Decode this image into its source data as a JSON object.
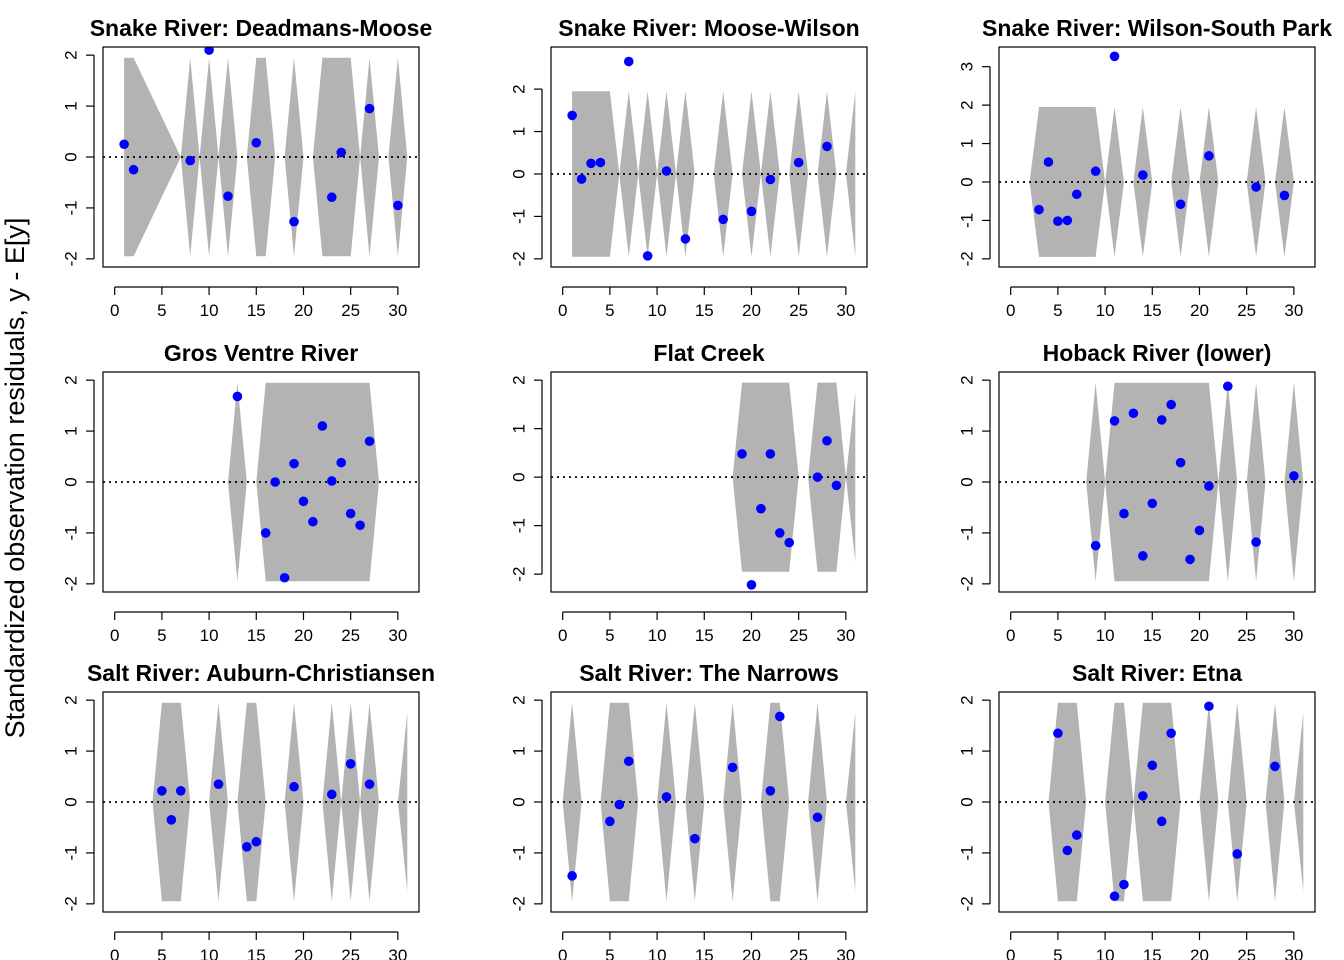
{
  "ylabel": "Standardized observation residuals, y - E[y]",
  "colors": {
    "point": "#0000ff",
    "band": "#b3b3b3",
    "axis": "#000000",
    "zero_line": "#000000"
  },
  "chart_data": [
    {
      "type": "scatter",
      "title": "Snake River: Deadmans-Moose",
      "xlim": [
        0,
        31
      ],
      "ylim": [
        -2,
        2
      ],
      "xticks": [
        0,
        5,
        10,
        15,
        20,
        25,
        30
      ],
      "yticks": [
        -2,
        -1,
        0,
        1,
        2
      ],
      "x": [
        1,
        2,
        8,
        10,
        12,
        15,
        19,
        23,
        24,
        27,
        30
      ],
      "y": [
        0.25,
        -0.25,
        -0.07,
        2.1,
        -0.77,
        0.28,
        -1.27,
        -0.79,
        0.09,
        0.95,
        -0.95
      ],
      "band_half_width": {
        "1": 1.95,
        "2": 1.95,
        "7": 0,
        "8": 1.95,
        "9": 0,
        "10": 1.95,
        "11": 0,
        "12": 1.95,
        "13": 0,
        "14": 0,
        "15": 1.95,
        "16": 1.95,
        "17": 0,
        "18": 0,
        "19": 1.95,
        "20": 0,
        "21": 0,
        "22": 1.95,
        "23": 1.95,
        "24": 1.95,
        "25": 1.95,
        "26": 0,
        "27": 1.95,
        "28": 0,
        "29": 0,
        "30": 1.95,
        "31": 0
      }
    },
    {
      "type": "scatter",
      "title": "Snake River: Moose-Wilson",
      "xlim": [
        0,
        31
      ],
      "ylim": [
        -2,
        2.8
      ],
      "xticks": [
        0,
        5,
        10,
        15,
        20,
        25,
        30
      ],
      "yticks": [
        -2,
        -1,
        0,
        1,
        2
      ],
      "x": [
        1,
        2,
        3,
        4,
        7,
        9,
        11,
        13,
        17,
        20,
        22,
        25,
        28
      ],
      "y": [
        1.38,
        -0.12,
        0.25,
        0.27,
        2.65,
        -1.93,
        0.07,
        -1.53,
        -1.07,
        -0.88,
        -0.13,
        0.27,
        0.65
      ],
      "band_half_width": {
        "1": 1.95,
        "2": 1.95,
        "3": 1.95,
        "4": 1.95,
        "5": 1.95,
        "6": 0,
        "7": 1.95,
        "8": 0,
        "9": 1.95,
        "10": 0,
        "11": 1.95,
        "12": 0,
        "13": 1.95,
        "14": 0,
        "15": 0,
        "16": 0,
        "17": 1.95,
        "18": 0,
        "19": 0,
        "20": 1.95,
        "21": 0,
        "22": 1.95,
        "23": 0,
        "24": 0,
        "25": 1.95,
        "26": 0,
        "27": 0,
        "28": 1.95,
        "29": 0,
        "30": 0,
        "31": 1.95
      }
    },
    {
      "type": "scatter",
      "title": "Snake River: Wilson-South Park",
      "xlim": [
        0,
        31
      ],
      "ylim": [
        -2,
        3.3
      ],
      "xticks": [
        0,
        5,
        10,
        15,
        20,
        25,
        30
      ],
      "yticks": [
        -2,
        -1,
        0,
        1,
        2,
        3
      ],
      "x": [
        3,
        4,
        5,
        6,
        7,
        9,
        11,
        14,
        18,
        21,
        26,
        29
      ],
      "y": [
        -0.72,
        0.52,
        -1.02,
        -1.0,
        -0.32,
        0.28,
        3.27,
        0.18,
        -0.58,
        0.68,
        -0.13,
        -0.35
      ],
      "band_half_width": {
        "2": 0,
        "3": 1.95,
        "4": 1.95,
        "5": 1.95,
        "6": 1.95,
        "7": 1.95,
        "8": 1.95,
        "9": 1.95,
        "10": 0,
        "11": 1.95,
        "12": 0,
        "13": 0,
        "14": 1.95,
        "15": 0,
        "16": 0,
        "17": 0,
        "18": 1.95,
        "19": 0,
        "20": 0,
        "21": 1.95,
        "22": 0,
        "23": 0,
        "24": 0,
        "25": 0,
        "26": 1.95,
        "27": 0,
        "28": 0,
        "29": 1.95,
        "30": 0
      }
    },
    {
      "type": "scatter",
      "title": "Gros Ventre River",
      "xlim": [
        0,
        31
      ],
      "ylim": [
        -2,
        2
      ],
      "xticks": [
        0,
        5,
        10,
        15,
        20,
        25,
        30
      ],
      "yticks": [
        -2,
        -1,
        0,
        1,
        2
      ],
      "x": [
        13,
        16,
        17,
        18,
        19,
        20,
        21,
        22,
        23,
        24,
        25,
        26,
        27
      ],
      "y": [
        1.68,
        -1.0,
        0.0,
        -1.88,
        0.36,
        -0.38,
        -0.78,
        1.1,
        0.02,
        0.38,
        -0.62,
        -0.85,
        0.8
      ],
      "band_half_width": {
        "12": 0,
        "13": 1.95,
        "14": 0,
        "15": 0,
        "16": 1.95,
        "17": 1.95,
        "18": 1.95,
        "19": 1.95,
        "20": 1.95,
        "21": 1.95,
        "22": 1.95,
        "23": 1.95,
        "24": 1.95,
        "25": 1.95,
        "26": 1.95,
        "27": 1.95,
        "28": 0
      }
    },
    {
      "type": "scatter",
      "title": "Flat Creek",
      "xlim": [
        0,
        31
      ],
      "ylim": [
        -2.2,
        2
      ],
      "xticks": [
        0,
        5,
        10,
        15,
        20,
        25,
        30
      ],
      "yticks": [
        -2,
        -1,
        0,
        1,
        2
      ],
      "x": [
        19,
        20,
        21,
        22,
        23,
        24,
        27,
        28,
        29
      ],
      "y": [
        0.48,
        -2.22,
        -0.65,
        0.48,
        -1.15,
        -1.35,
        0.0,
        0.75,
        -0.17
      ],
      "band_half_width": {
        "18": 0,
        "19": 1.95,
        "20": 1.95,
        "21": 1.95,
        "22": 1.95,
        "23": 1.95,
        "24": 1.95,
        "25": 0,
        "26": 0,
        "27": 1.95,
        "28": 1.95,
        "29": 1.95,
        "30": 0,
        "31": 1.75
      }
    },
    {
      "type": "scatter",
      "title": "Hoback River (lower)",
      "xlim": [
        0,
        31
      ],
      "ylim": [
        -2,
        2
      ],
      "xticks": [
        0,
        5,
        10,
        15,
        20,
        25,
        30
      ],
      "yticks": [
        -2,
        -1,
        0,
        1,
        2
      ],
      "x": [
        9,
        11,
        12,
        13,
        14,
        15,
        16,
        17,
        18,
        19,
        20,
        21,
        23,
        26,
        30
      ],
      "y": [
        -1.25,
        1.2,
        -0.62,
        1.35,
        -1.45,
        -0.42,
        1.22,
        1.52,
        0.38,
        -1.52,
        -0.95,
        -0.08,
        1.88,
        -1.18,
        0.12
      ],
      "band_half_width": {
        "8": 0,
        "9": 1.95,
        "10": 0,
        "11": 1.95,
        "12": 1.95,
        "13": 1.95,
        "14": 1.95,
        "15": 1.95,
        "16": 1.95,
        "17": 1.95,
        "18": 1.95,
        "19": 1.95,
        "20": 1.95,
        "21": 1.95,
        "22": 0,
        "23": 1.95,
        "24": 0,
        "25": 0,
        "26": 1.95,
        "27": 0,
        "28": 0,
        "29": 0,
        "30": 1.95,
        "31": 0
      }
    },
    {
      "type": "scatter",
      "title": "Salt River: Auburn-Christiansen",
      "xlim": [
        0,
        31
      ],
      "ylim": [
        -2,
        2
      ],
      "xticks": [
        0,
        5,
        10,
        15,
        20,
        25,
        30
      ],
      "yticks": [
        -2,
        -1,
        0,
        1,
        2
      ],
      "x": [
        5,
        6,
        7,
        11,
        14,
        15,
        19,
        23,
        25,
        27
      ],
      "y": [
        0.22,
        -0.35,
        0.22,
        0.35,
        -0.88,
        -0.78,
        0.3,
        0.15,
        0.75,
        0.35
      ],
      "band_half_width": {
        "4": 0,
        "5": 1.95,
        "6": 1.95,
        "7": 1.95,
        "8": 0,
        "9": 0,
        "10": 0,
        "11": 1.95,
        "12": 0,
        "13": 0,
        "14": 1.95,
        "15": 1.95,
        "16": 0,
        "17": 0,
        "18": 0,
        "19": 1.95,
        "20": 0,
        "21": 0,
        "22": 0,
        "23": 1.95,
        "24": 0,
        "25": 1.95,
        "26": 0,
        "27": 1.95,
        "28": 0,
        "29": 0,
        "30": 0,
        "31": 1.75
      }
    },
    {
      "type": "scatter",
      "title": "Salt River: The Narrows",
      "xlim": [
        0,
        31
      ],
      "ylim": [
        -2,
        2
      ],
      "xticks": [
        0,
        5,
        10,
        15,
        20,
        25,
        30
      ],
      "yticks": [
        -2,
        -1,
        0,
        1,
        2
      ],
      "x": [
        1,
        5,
        6,
        7,
        11,
        14,
        18,
        22,
        23,
        27
      ],
      "y": [
        -1.45,
        -0.38,
        -0.05,
        0.8,
        0.1,
        -0.72,
        0.68,
        0.22,
        1.68,
        -0.3
      ],
      "band_half_width": {
        "0": 0,
        "1": 1.95,
        "2": 0,
        "3": 0,
        "4": 0,
        "5": 1.95,
        "6": 1.95,
        "7": 1.95,
        "8": 0,
        "9": 0,
        "10": 0,
        "11": 1.95,
        "12": 0,
        "13": 0,
        "14": 1.95,
        "15": 0,
        "16": 0,
        "17": 0,
        "18": 1.95,
        "19": 0,
        "20": 0,
        "21": 0,
        "22": 1.95,
        "23": 1.95,
        "24": 0,
        "25": 0,
        "26": 0,
        "27": 1.95,
        "28": 0,
        "29": 0,
        "30": 0,
        "31": 1.75
      }
    },
    {
      "type": "scatter",
      "title": "Salt River: Etna",
      "xlim": [
        0,
        31
      ],
      "ylim": [
        -2,
        2
      ],
      "xticks": [
        0,
        5,
        10,
        15,
        20,
        25,
        30
      ],
      "yticks": [
        -2,
        -1,
        0,
        1,
        2
      ],
      "x": [
        5,
        6,
        7,
        11,
        12,
        14,
        15,
        16,
        17,
        21,
        24,
        28
      ],
      "y": [
        1.35,
        -0.95,
        -0.65,
        -1.85,
        -1.62,
        0.12,
        0.72,
        -0.38,
        1.35,
        1.88,
        -1.02,
        0.7
      ],
      "band_half_width": {
        "4": 0,
        "5": 1.95,
        "6": 1.95,
        "7": 1.95,
        "8": 0,
        "9": 0,
        "10": 0,
        "11": 1.95,
        "12": 1.95,
        "13": 0,
        "14": 1.95,
        "15": 1.95,
        "16": 1.95,
        "17": 1.95,
        "18": 0,
        "19": 0,
        "20": 0,
        "21": 1.95,
        "22": 0,
        "23": 0,
        "24": 1.95,
        "25": 0,
        "26": 0,
        "27": 0,
        "28": 1.95,
        "29": 0,
        "30": 0,
        "31": 1.75
      }
    }
  ]
}
